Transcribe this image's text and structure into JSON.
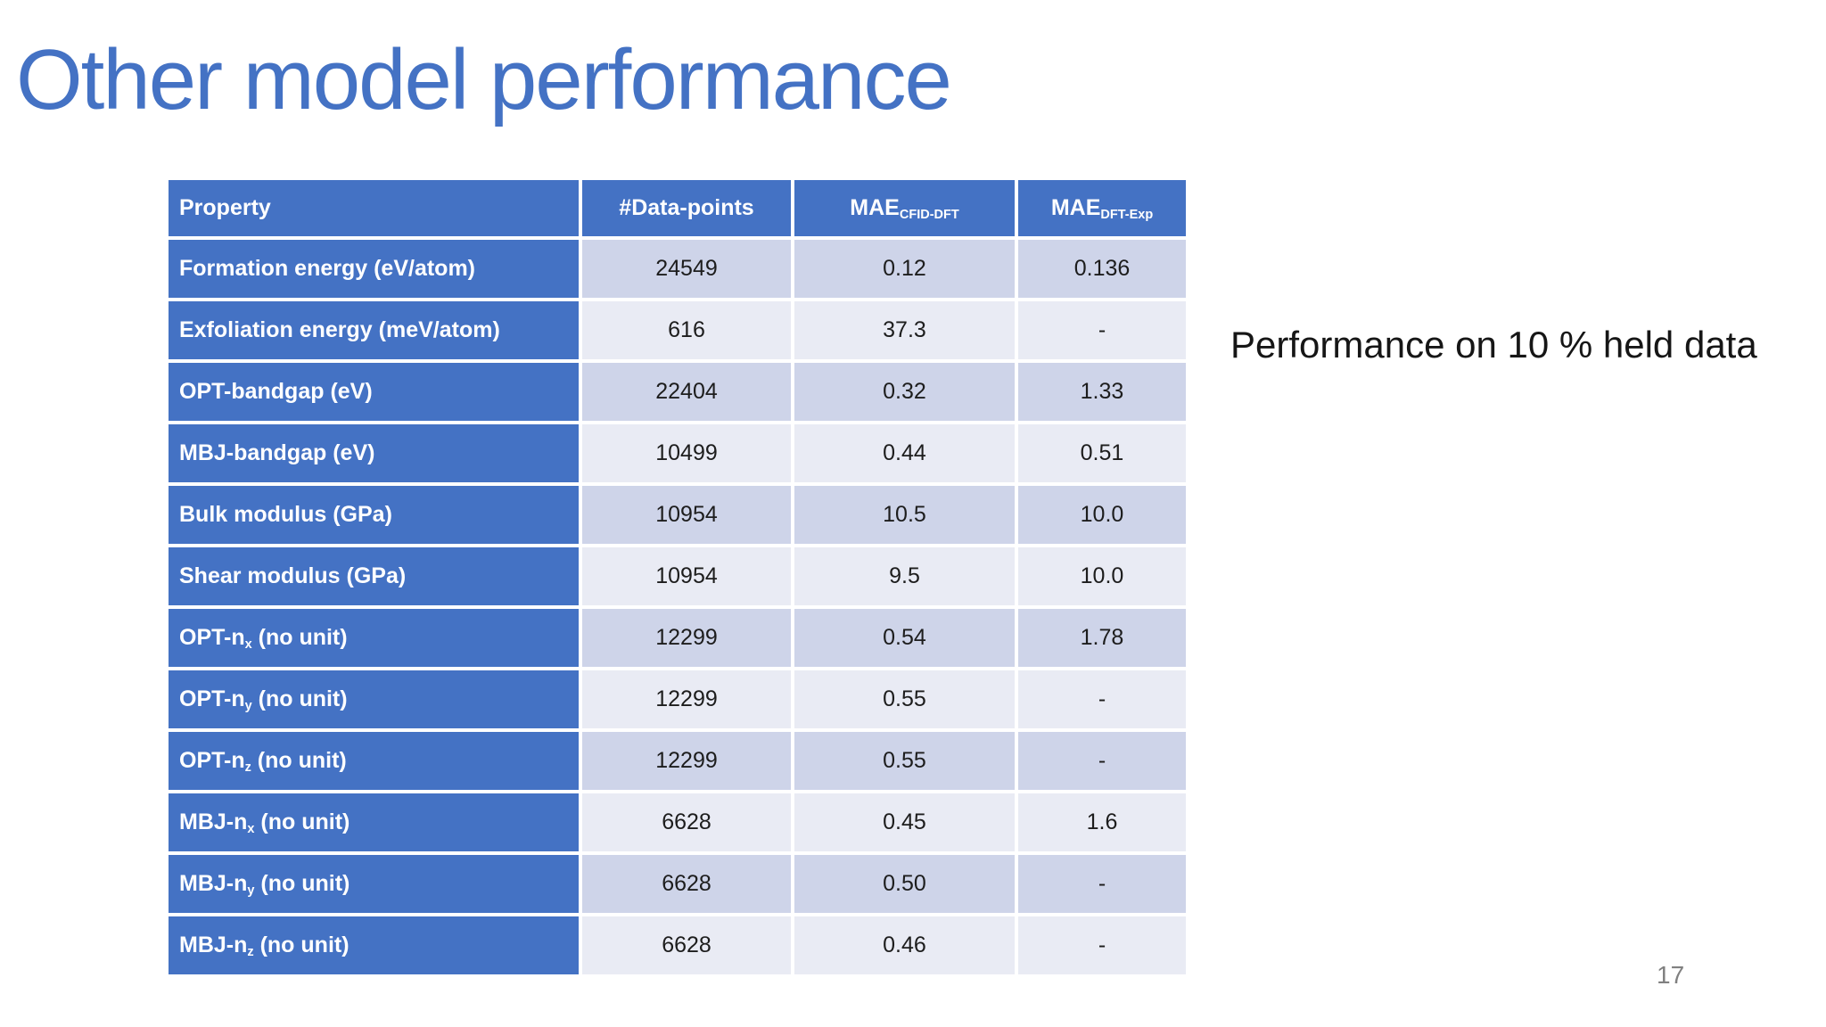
{
  "slide": {
    "title": "Other model performance",
    "annotation": "Performance on 10 % held data",
    "page_number": "17"
  },
  "colors": {
    "accent_blue": "#4472C4",
    "band_dark": "#CED4E9",
    "band_light": "#E9EBF4",
    "title_blue": "#4472C4",
    "page_number_gray": "#808080",
    "header_text": "#FFFFFF",
    "cell_text": "#1D1D1D"
  },
  "table": {
    "headers": [
      {
        "pre": "Property",
        "sub": "",
        "post": ""
      },
      {
        "pre": "#Data-points",
        "sub": "",
        "post": ""
      },
      {
        "pre": "MAE",
        "sub": "CFID-DFT",
        "post": ""
      },
      {
        "pre": "MAE",
        "sub": "DFT-Exp",
        "post": ""
      }
    ],
    "rows": [
      {
        "property": {
          "pre": "Formation energy (eV/atom)",
          "sub": "",
          "post": ""
        },
        "datapoints": "24549",
        "mae_cfid_dft": "0.12",
        "mae_dft_exp": "0.136"
      },
      {
        "property": {
          "pre": "Exfoliation energy (meV/atom)",
          "sub": "",
          "post": ""
        },
        "datapoints": "616",
        "mae_cfid_dft": "37.3",
        "mae_dft_exp": "-"
      },
      {
        "property": {
          "pre": "OPT-bandgap (eV)",
          "sub": "",
          "post": ""
        },
        "datapoints": "22404",
        "mae_cfid_dft": "0.32",
        "mae_dft_exp": "1.33"
      },
      {
        "property": {
          "pre": "MBJ-bandgap (eV)",
          "sub": "",
          "post": ""
        },
        "datapoints": "10499",
        "mae_cfid_dft": "0.44",
        "mae_dft_exp": "0.51"
      },
      {
        "property": {
          "pre": "Bulk modulus (GPa)",
          "sub": "",
          "post": ""
        },
        "datapoints": "10954",
        "mae_cfid_dft": "10.5",
        "mae_dft_exp": "10.0"
      },
      {
        "property": {
          "pre": "Shear modulus (GPa)",
          "sub": "",
          "post": ""
        },
        "datapoints": "10954",
        "mae_cfid_dft": "9.5",
        "mae_dft_exp": "10.0"
      },
      {
        "property": {
          "pre": "OPT-n",
          "sub": "x",
          "post": " (no unit)"
        },
        "datapoints": "12299",
        "mae_cfid_dft": "0.54",
        "mae_dft_exp": "1.78"
      },
      {
        "property": {
          "pre": "OPT-n",
          "sub": "y",
          "post": " (no unit)"
        },
        "datapoints": "12299",
        "mae_cfid_dft": "0.55",
        "mae_dft_exp": "-"
      },
      {
        "property": {
          "pre": "OPT-n",
          "sub": "z",
          "post": " (no unit)"
        },
        "datapoints": "12299",
        "mae_cfid_dft": "0.55",
        "mae_dft_exp": "-"
      },
      {
        "property": {
          "pre": "MBJ-n",
          "sub": "x",
          "post": " (no unit)"
        },
        "datapoints": "6628",
        "mae_cfid_dft": "0.45",
        "mae_dft_exp": "1.6"
      },
      {
        "property": {
          "pre": "MBJ-n",
          "sub": "y",
          "post": " (no unit)"
        },
        "datapoints": "6628",
        "mae_cfid_dft": "0.50",
        "mae_dft_exp": "-"
      },
      {
        "property": {
          "pre": "MBJ-n",
          "sub": "z",
          "post": " (no unit)"
        },
        "datapoints": "6628",
        "mae_cfid_dft": "0.46",
        "mae_dft_exp": "-"
      }
    ]
  }
}
